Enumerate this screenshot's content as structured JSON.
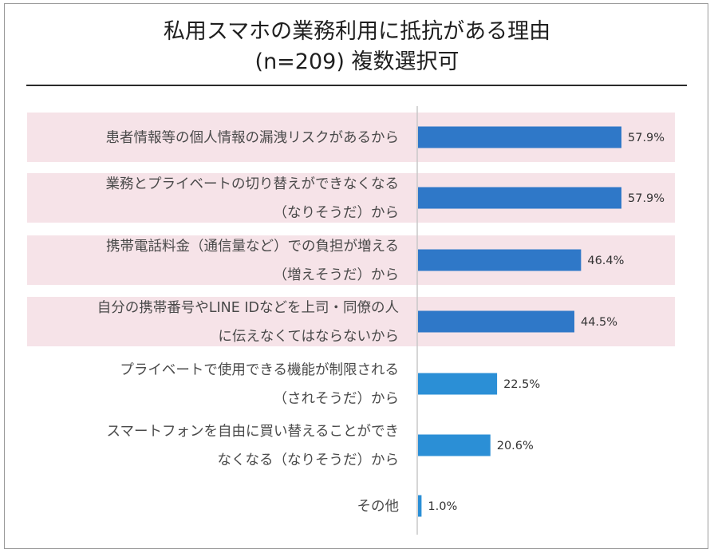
{
  "chart_data": {
    "type": "bar",
    "orientation": "horizontal",
    "title": [
      "私用スマホの業務利用に抵抗がある理由",
      "(n=209) 複数選択可"
    ],
    "xlabel": "",
    "ylabel": "",
    "xlim": [
      0,
      100
    ],
    "value_suffix": "%",
    "grid": false,
    "categories": [
      [
        "患者情報等の個人情報の漏洩リスクがあるから"
      ],
      [
        "業務とプライベートの切り替えができなくなる",
        "（なりそうだ）から"
      ],
      [
        "携帯電話料金（通信量など）での負担が増える",
        "（増えそうだ）から"
      ],
      [
        "自分の携帯番号やLINE IDなどを上司・同僚の人",
        "に伝えなくてはならないから"
      ],
      [
        "プライベートで使用できる機能が制限される",
        "（されそうだ）から"
      ],
      [
        "スマートフォンを自由に買い替えることができ",
        "なくなる（なりそうだ）から"
      ],
      [
        "その他"
      ]
    ],
    "values": [
      57.9,
      57.9,
      46.4,
      44.5,
      22.5,
      20.6,
      1.0
    ],
    "highlighted": [
      true,
      true,
      true,
      true,
      false,
      false,
      false
    ]
  },
  "colors": {
    "highlight_band": "#f6e3e8",
    "bar_highlighted": "#2f78c8",
    "bar_normal": "#2b8fd6",
    "axis": "#c8c8c8"
  }
}
